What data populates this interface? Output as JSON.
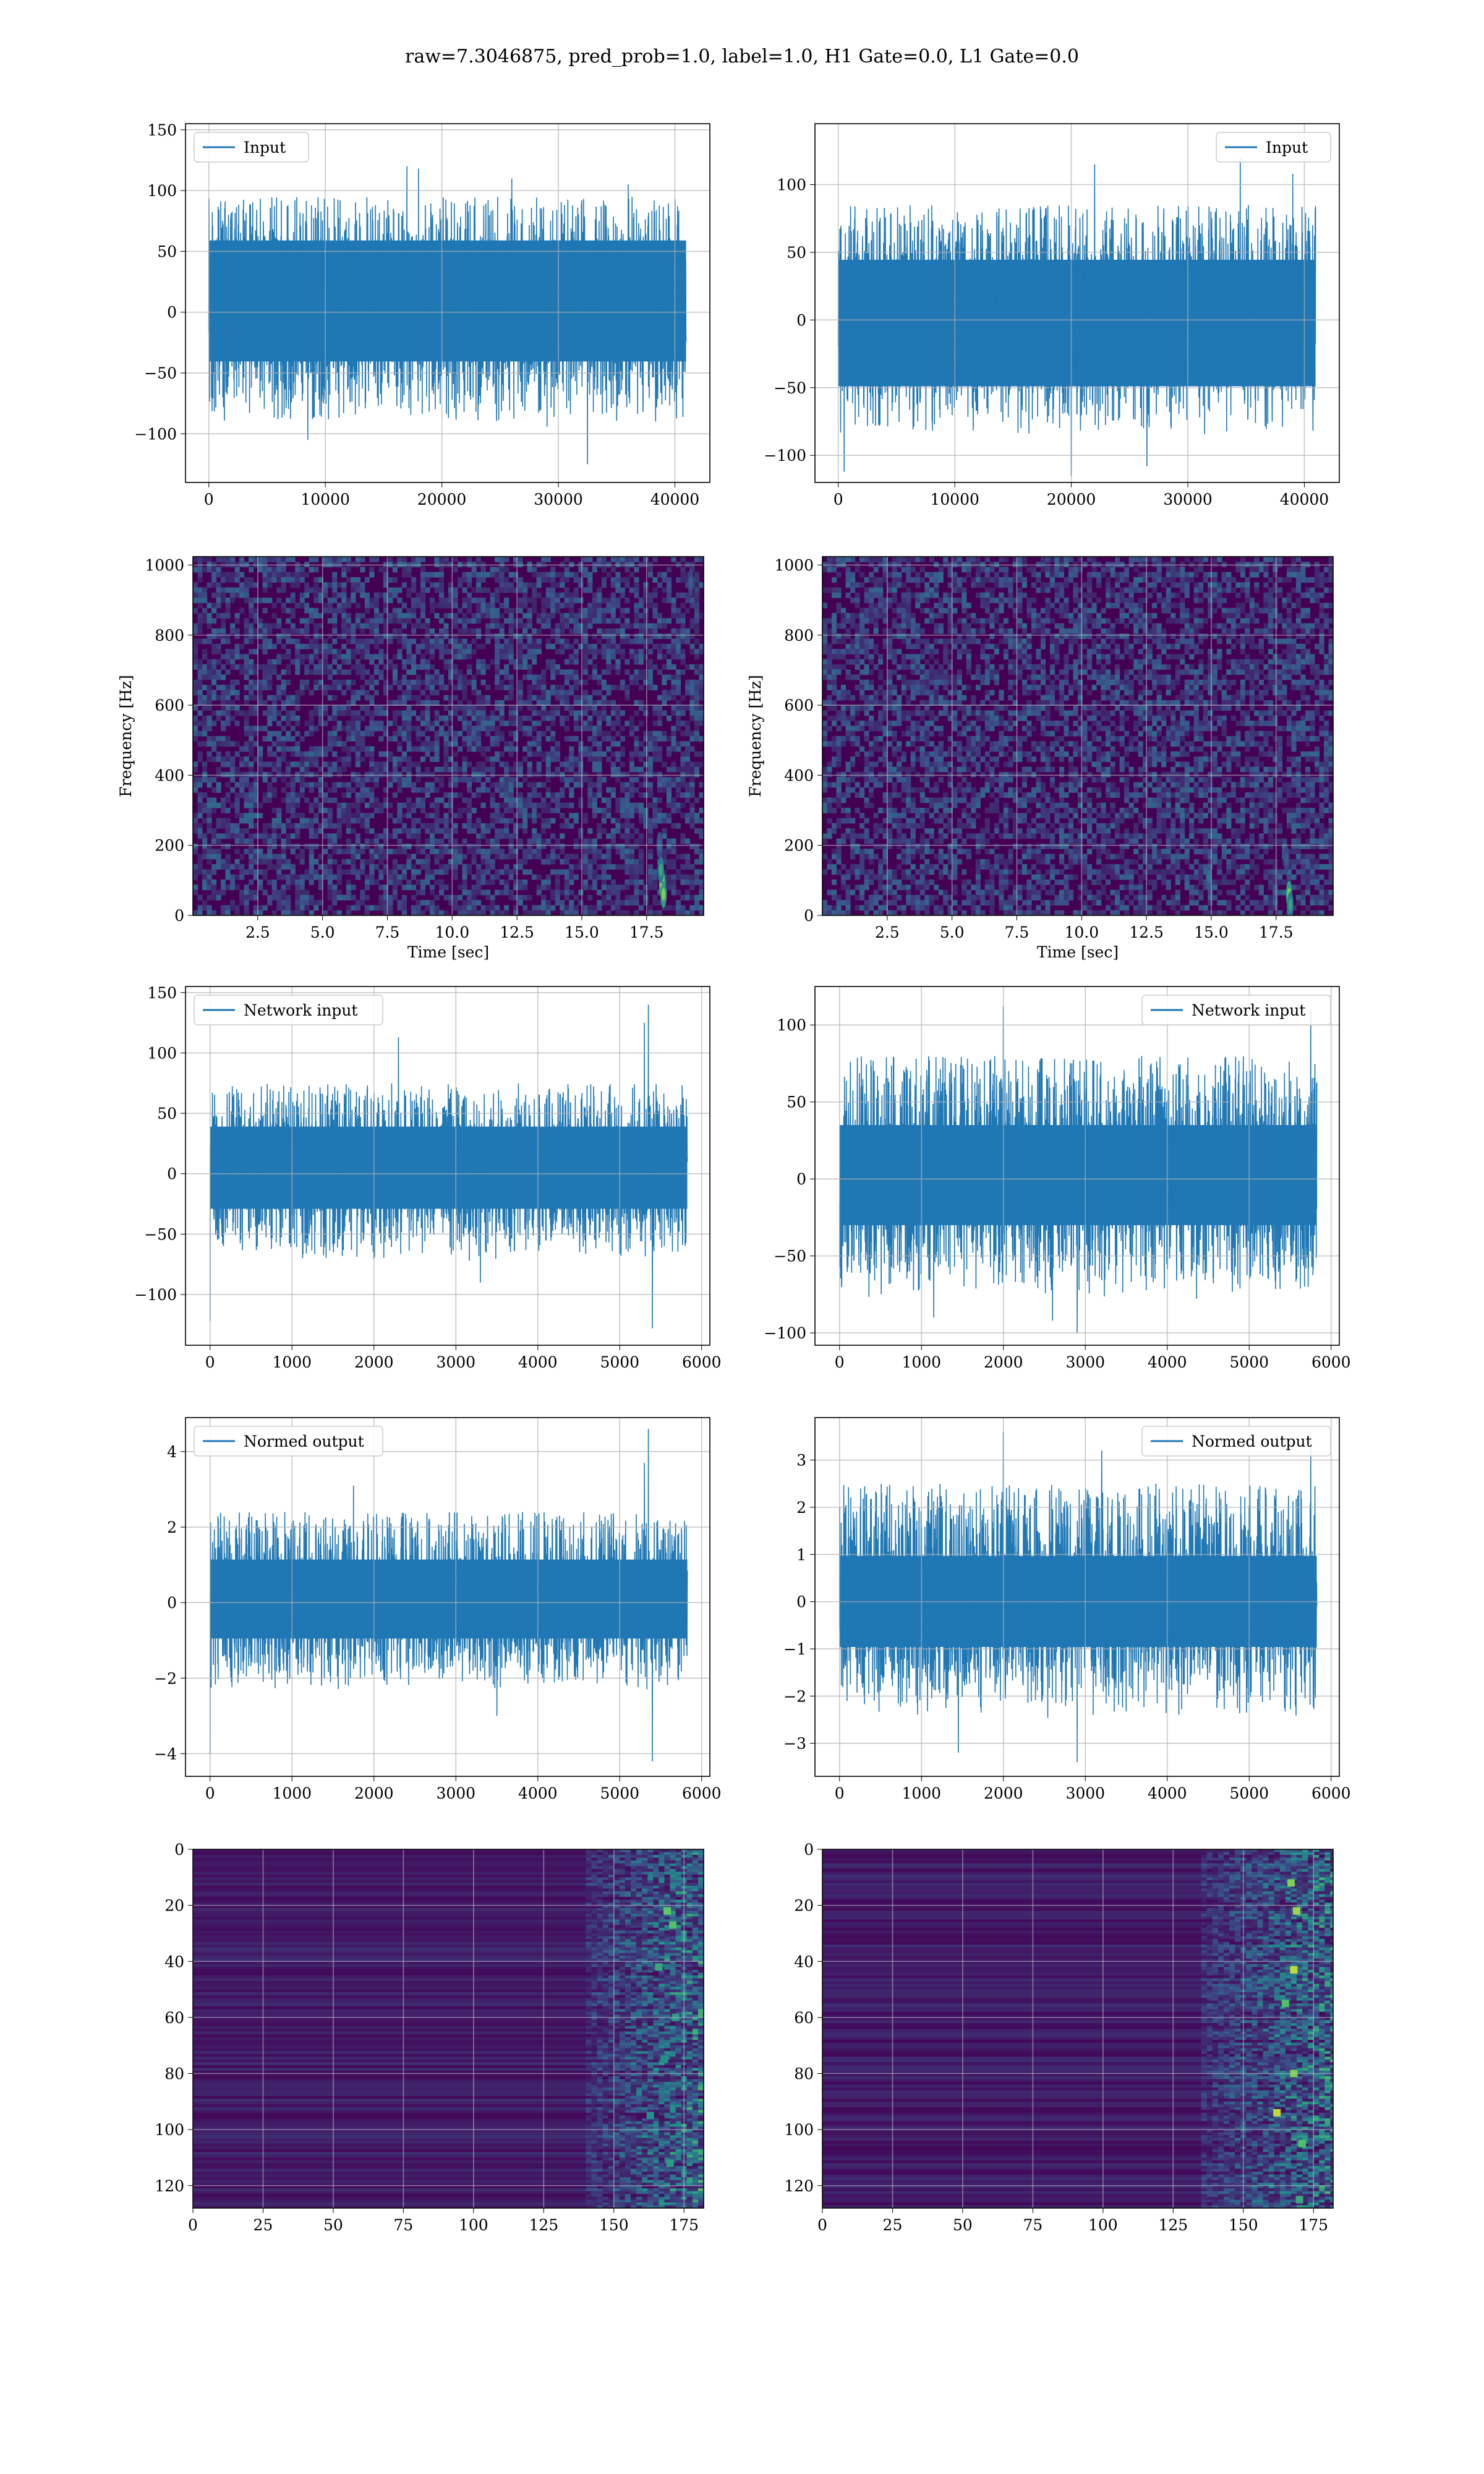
{
  "title": "raw=7.3046875, pred_prob=1.0, label=1.0, H1 Gate=0.0, L1 Gate=0.0",
  "colors": {
    "series": "#1f77b4",
    "grid": "#b0b0b0",
    "viridis_low": "#440154",
    "viridis_high": "#fde725"
  },
  "chart_data": [
    {
      "id": "input-h1",
      "type": "line",
      "row": 0,
      "col": 0,
      "legend": "Input",
      "legend_loc": "upper left",
      "xlim": [
        -2000,
        43000
      ],
      "ylim": [
        -140,
        155
      ],
      "xticks": [
        0,
        10000,
        20000,
        30000,
        40000
      ],
      "yticks": [
        -100,
        -50,
        0,
        50,
        100,
        150
      ],
      "n_points": 40960,
      "band": [
        -35,
        55
      ],
      "typical_range": [
        -90,
        95
      ],
      "spikes": [
        [
          17000,
          120
        ],
        [
          36000,
          105
        ],
        [
          32500,
          -125
        ],
        [
          18000,
          118
        ],
        [
          8500,
          -105
        ],
        [
          26000,
          110
        ]
      ],
      "grid": true,
      "xlabel": "",
      "ylabel": ""
    },
    {
      "id": "input-l1",
      "type": "line",
      "row": 0,
      "col": 1,
      "legend": "Input",
      "legend_loc": "upper right",
      "xlim": [
        -2000,
        43000
      ],
      "ylim": [
        -120,
        145
      ],
      "xticks": [
        0,
        10000,
        20000,
        30000,
        40000
      ],
      "yticks": [
        -100,
        -50,
        0,
        50,
        100
      ],
      "n_points": 40960,
      "band": [
        -45,
        40
      ],
      "typical_range": [
        -85,
        85
      ],
      "spikes": [
        [
          34500,
          120
        ],
        [
          22000,
          115
        ],
        [
          20000,
          -115
        ],
        [
          500,
          -112
        ],
        [
          26500,
          -108
        ],
        [
          39000,
          108
        ]
      ],
      "grid": true,
      "xlabel": "",
      "ylabel": ""
    },
    {
      "id": "spectrogram-h1",
      "type": "heatmap",
      "row": 1,
      "col": 0,
      "xlim": [
        0,
        19.7
      ],
      "ylim": [
        0,
        1024
      ],
      "xticks": [
        2.5,
        5.0,
        7.5,
        10.0,
        12.5,
        15.0,
        17.5
      ],
      "xtick_labels": [
        "2.5",
        "5.0",
        "7.5",
        "10.0",
        "12.5",
        "15.0",
        "17.5"
      ],
      "yticks": [
        0,
        200,
        400,
        600,
        800,
        1000
      ],
      "xlabel": "Time [sec]",
      "ylabel": "Frequency [Hz]",
      "colormap": "viridis",
      "hotspots": [
        [
          18.1,
          90,
          0.95
        ],
        [
          18.15,
          60,
          0.8
        ],
        [
          18.05,
          130,
          0.6
        ],
        [
          18.0,
          200,
          0.35
        ],
        [
          19.2,
          950,
          0.3
        ]
      ],
      "grid": true
    },
    {
      "id": "spectrogram-l1",
      "type": "heatmap",
      "row": 1,
      "col": 1,
      "xlim": [
        0,
        19.7
      ],
      "ylim": [
        0,
        1024
      ],
      "xticks": [
        2.5,
        5.0,
        7.5,
        10.0,
        12.5,
        15.0,
        17.5
      ],
      "xtick_labels": [
        "2.5",
        "5.0",
        "7.5",
        "10.0",
        "12.5",
        "15.0",
        "17.5"
      ],
      "yticks": [
        0,
        200,
        400,
        600,
        800,
        1000
      ],
      "xlabel": "Time [sec]",
      "ylabel": "Frequency [Hz]",
      "colormap": "viridis",
      "hotspots": [
        [
          18.0,
          60,
          0.8
        ],
        [
          18.05,
          30,
          0.6
        ],
        [
          14.9,
          110,
          0.4
        ],
        [
          17.9,
          160,
          0.3
        ]
      ],
      "grid": true
    },
    {
      "id": "network-input-h1",
      "type": "line",
      "row": 2,
      "col": 0,
      "legend": "Network input",
      "legend_loc": "upper left",
      "xlim": [
        -300,
        6100
      ],
      "ylim": [
        -142,
        155
      ],
      "xticks": [
        0,
        1000,
        2000,
        3000,
        4000,
        5000,
        6000
      ],
      "yticks": [
        -100,
        -50,
        0,
        50,
        100,
        150
      ],
      "n_points": 5825,
      "band": [
        -25,
        35
      ],
      "typical_range": [
        -65,
        75
      ],
      "spikes": [
        [
          5350,
          140
        ],
        [
          5300,
          125
        ],
        [
          5400,
          -128
        ],
        [
          2300,
          113
        ],
        [
          0,
          -122
        ],
        [
          3300,
          -90
        ]
      ],
      "grid": true,
      "xlabel": "",
      "ylabel": ""
    },
    {
      "id": "network-input-l1",
      "type": "line",
      "row": 2,
      "col": 1,
      "legend": "Network input",
      "legend_loc": "upper right",
      "xlim": [
        -300,
        6100
      ],
      "ylim": [
        -108,
        125
      ],
      "xticks": [
        0,
        1000,
        2000,
        3000,
        4000,
        5000,
        6000
      ],
      "yticks": [
        -100,
        -50,
        0,
        50,
        100
      ],
      "n_points": 5825,
      "band": [
        -25,
        30
      ],
      "typical_range": [
        -75,
        80
      ],
      "spikes": [
        [
          2000,
          112
        ],
        [
          5750,
          110
        ],
        [
          2900,
          -100
        ],
        [
          2600,
          -92
        ],
        [
          1150,
          -90
        ]
      ],
      "grid": true,
      "xlabel": "",
      "ylabel": ""
    },
    {
      "id": "normed-output-h1",
      "type": "line",
      "row": 3,
      "col": 0,
      "legend": "Normed output",
      "legend_loc": "upper left",
      "xlim": [
        -300,
        6100
      ],
      "ylim": [
        -4.6,
        4.9
      ],
      "xticks": [
        0,
        1000,
        2000,
        3000,
        4000,
        5000,
        6000
      ],
      "yticks": [
        -4,
        -2,
        0,
        2,
        4
      ],
      "n_points": 5825,
      "band": [
        -0.8,
        1.0
      ],
      "typical_range": [
        -2.3,
        2.4
      ],
      "spikes": [
        [
          5350,
          4.6
        ],
        [
          5400,
          -4.2
        ],
        [
          1750,
          3.1
        ],
        [
          0,
          -4.0
        ],
        [
          5300,
          3.7
        ],
        [
          3500,
          -3.0
        ]
      ],
      "grid": true,
      "xlabel": "",
      "ylabel": ""
    },
    {
      "id": "normed-output-l1",
      "type": "line",
      "row": 3,
      "col": 1,
      "legend": "Normed output",
      "legend_loc": "upper right",
      "xlim": [
        -300,
        6100
      ],
      "ylim": [
        -3.7,
        3.9
      ],
      "xticks": [
        0,
        1000,
        2000,
        3000,
        4000,
        5000,
        6000
      ],
      "yticks": [
        -3,
        -2,
        -1,
        0,
        1,
        2,
        3
      ],
      "n_points": 5825,
      "band": [
        -0.8,
        0.8
      ],
      "typical_range": [
        -2.4,
        2.5
      ],
      "spikes": [
        [
          2000,
          3.6
        ],
        [
          5750,
          3.4
        ],
        [
          2900,
          -3.4
        ],
        [
          1450,
          -3.2
        ],
        [
          3200,
          3.2
        ]
      ],
      "grid": true,
      "xlabel": "",
      "ylabel": ""
    },
    {
      "id": "feature-map-h1",
      "type": "heatmap",
      "row": 4,
      "col": 0,
      "xlim": [
        0,
        182
      ],
      "ylim": [
        128,
        0
      ],
      "xticks": [
        0,
        25,
        50,
        75,
        100,
        125,
        150,
        175
      ],
      "yticks": [
        0,
        20,
        40,
        60,
        80,
        100,
        120
      ],
      "xlabel": "",
      "ylabel": "",
      "colormap": "viridis",
      "active_from_col": 140,
      "hot_cells": [
        [
          169,
          22,
          0.75
        ],
        [
          171,
          27,
          0.7
        ],
        [
          166,
          42,
          0.6
        ],
        [
          172,
          60,
          0.55
        ],
        [
          168,
          75,
          0.5
        ],
        [
          163,
          95,
          0.5
        ],
        [
          170,
          112,
          0.55
        ]
      ],
      "grid": true
    },
    {
      "id": "feature-map-l1",
      "type": "heatmap",
      "row": 4,
      "col": 1,
      "xlim": [
        0,
        182
      ],
      "ylim": [
        128,
        0
      ],
      "xticks": [
        0,
        25,
        50,
        75,
        100,
        125,
        150,
        175
      ],
      "yticks": [
        0,
        20,
        40,
        60,
        80,
        100,
        120
      ],
      "xlabel": "",
      "ylabel": "",
      "colormap": "viridis",
      "active_from_col": 135,
      "hot_cells": [
        [
          167,
          12,
          0.8
        ],
        [
          169,
          22,
          0.85
        ],
        [
          168,
          43,
          0.9
        ],
        [
          165,
          55,
          0.7
        ],
        [
          168,
          80,
          0.8
        ],
        [
          162,
          94,
          0.9
        ],
        [
          171,
          105,
          0.7
        ],
        [
          170,
          125,
          0.6
        ]
      ],
      "grid": true
    }
  ]
}
